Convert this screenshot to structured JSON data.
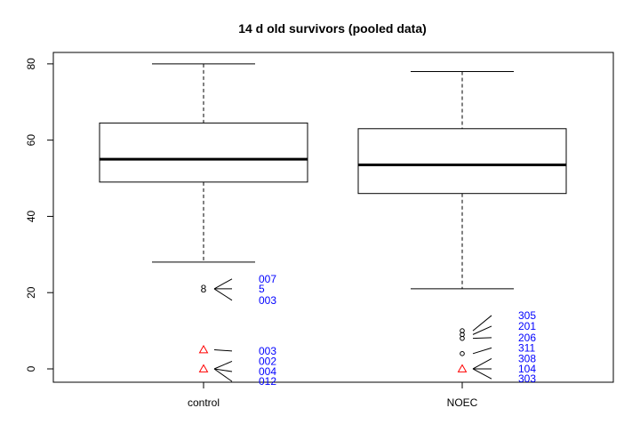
{
  "chart_data": {
    "type": "box",
    "title": "14 d old survivors (pooled data)",
    "xlabel": "",
    "ylabel": "",
    "ylim": [
      -3.5,
      83
    ],
    "yticks": [
      0,
      20,
      40,
      60,
      80
    ],
    "grid": false,
    "categories": [
      "control",
      "NOEC"
    ],
    "boxes": [
      {
        "name": "control",
        "whisker_low": 28,
        "q1": 49,
        "median": 55,
        "q3": 64.5,
        "whisker_high": 80,
        "outliers": [
          {
            "value": 21,
            "marker": "8"
          },
          {
            "value": 5,
            "marker": "triangle"
          },
          {
            "value": 0,
            "marker": "triangle"
          }
        ],
        "annotations": [
          {
            "text": "007",
            "label_y": 23.6,
            "anchor_y": 21
          },
          {
            "text": "5",
            "label_y": 21.0,
            "anchor_y": 21
          },
          {
            "text": "003",
            "label_y": 18.0,
            "anchor_y": 21
          },
          {
            "text": "003",
            "label_y": 4.7,
            "anchor_y": 5
          },
          {
            "text": "002",
            "label_y": 2.0,
            "anchor_y": 0
          },
          {
            "text": "004",
            "label_y": -0.7,
            "anchor_y": 0
          },
          {
            "text": "012",
            "label_y": -3.3,
            "anchor_y": 0
          }
        ]
      },
      {
        "name": "NOEC",
        "whisker_low": 21,
        "q1": 46,
        "median": 53.5,
        "q3": 63,
        "whisker_high": 78,
        "outliers": [
          {
            "value": 10,
            "marker": "circle"
          },
          {
            "value": 9,
            "marker": "circle"
          },
          {
            "value": 8,
            "marker": "circle"
          },
          {
            "value": 4,
            "marker": "circle"
          },
          {
            "value": 0,
            "marker": "triangle"
          }
        ],
        "annotations": [
          {
            "text": "305",
            "label_y": 14.0,
            "anchor_y": 10
          },
          {
            "text": "201",
            "label_y": 11.2,
            "anchor_y": 9
          },
          {
            "text": "206",
            "label_y": 8.2,
            "anchor_y": 8
          },
          {
            "text": "311",
            "label_y": 5.5,
            "anchor_y": 4
          },
          {
            "text": "308",
            "label_y": 2.7,
            "anchor_y": 0
          },
          {
            "text": "104",
            "label_y": 0.0,
            "anchor_y": 0
          },
          {
            "text": "303",
            "label_y": -2.6,
            "anchor_y": 0
          }
        ]
      }
    ],
    "colors": {
      "annotation_text": "#0000ff",
      "triangle_marker": "#ff0000",
      "box_line": "#000000"
    }
  }
}
